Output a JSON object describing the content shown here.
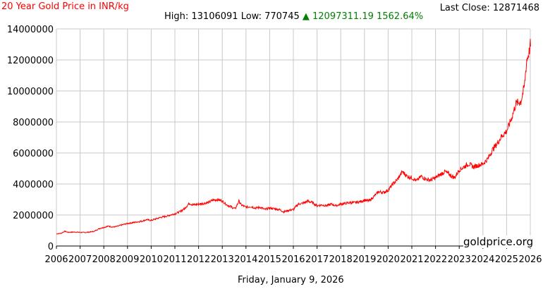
{
  "header": {
    "title": "20 Year Gold Price in INR/kg",
    "last_close_label": "Last Close: 12871468",
    "high_label": "High: 13106091",
    "low_label": "Low: 770745",
    "change_arrow": "▲",
    "change_text": "12097311.19 1562.64%"
  },
  "footer": {
    "date": "Friday, January 9, 2026",
    "watermark": "goldprice.org"
  },
  "colors": {
    "title": "#ff0000",
    "line": "#ff0000",
    "change": "#008000",
    "grid": "#c8c8c8",
    "axis": "#000000"
  },
  "chart_data": {
    "type": "line",
    "title": "20 Year Gold Price in INR/kg",
    "xlabel": "",
    "ylabel": "",
    "x_ticks": [
      "2006",
      "2007",
      "2008",
      "2009",
      "2010",
      "2011",
      "2012",
      "2013",
      "2014",
      "2015",
      "2016",
      "2017",
      "2018",
      "2019",
      "2020",
      "2021",
      "2022",
      "2023",
      "2024",
      "2025",
      "2026"
    ],
    "y_ticks": [
      "0",
      "2000000",
      "4000000",
      "6000000",
      "8000000",
      "10000000",
      "12000000",
      "14000000"
    ],
    "xlim": [
      2006,
      2026
    ],
    "ylim": [
      0,
      14000000
    ],
    "grid": true,
    "series": [
      {
        "values": [
          [
            2006.0,
            780000
          ],
          [
            2006.2,
            820000
          ],
          [
            2006.35,
            950000
          ],
          [
            2006.5,
            880000
          ],
          [
            2006.75,
            900000
          ],
          [
            2007.0,
            880000
          ],
          [
            2007.2,
            870000
          ],
          [
            2007.4,
            900000
          ],
          [
            2007.6,
            950000
          ],
          [
            2007.8,
            1120000
          ],
          [
            2008.0,
            1200000
          ],
          [
            2008.2,
            1280000
          ],
          [
            2008.4,
            1220000
          ],
          [
            2008.6,
            1280000
          ],
          [
            2008.8,
            1380000
          ],
          [
            2009.0,
            1450000
          ],
          [
            2009.2,
            1500000
          ],
          [
            2009.4,
            1550000
          ],
          [
            2009.6,
            1600000
          ],
          [
            2009.8,
            1700000
          ],
          [
            2010.0,
            1650000
          ],
          [
            2010.2,
            1750000
          ],
          [
            2010.4,
            1850000
          ],
          [
            2010.6,
            1900000
          ],
          [
            2010.8,
            2000000
          ],
          [
            2011.0,
            2080000
          ],
          [
            2011.2,
            2200000
          ],
          [
            2011.4,
            2400000
          ],
          [
            2011.6,
            2750000
          ],
          [
            2011.8,
            2650000
          ],
          [
            2012.0,
            2700000
          ],
          [
            2012.2,
            2750000
          ],
          [
            2012.4,
            2800000
          ],
          [
            2012.6,
            2950000
          ],
          [
            2012.8,
            3000000
          ],
          [
            2013.0,
            2900000
          ],
          [
            2013.2,
            2650000
          ],
          [
            2013.4,
            2500000
          ],
          [
            2013.55,
            2400000
          ],
          [
            2013.7,
            2900000
          ],
          [
            2013.8,
            2650000
          ],
          [
            2014.0,
            2500000
          ],
          [
            2014.2,
            2550000
          ],
          [
            2014.4,
            2450000
          ],
          [
            2014.6,
            2500000
          ],
          [
            2014.8,
            2350000
          ],
          [
            2015.0,
            2450000
          ],
          [
            2015.2,
            2400000
          ],
          [
            2015.4,
            2350000
          ],
          [
            2015.6,
            2200000
          ],
          [
            2015.8,
            2300000
          ],
          [
            2016.0,
            2350000
          ],
          [
            2016.2,
            2700000
          ],
          [
            2016.4,
            2750000
          ],
          [
            2016.6,
            2900000
          ],
          [
            2016.8,
            2800000
          ],
          [
            2017.0,
            2600000
          ],
          [
            2017.2,
            2650000
          ],
          [
            2017.4,
            2600000
          ],
          [
            2017.6,
            2700000
          ],
          [
            2017.8,
            2600000
          ],
          [
            2018.0,
            2700000
          ],
          [
            2018.2,
            2750000
          ],
          [
            2018.4,
            2800000
          ],
          [
            2018.6,
            2800000
          ],
          [
            2018.8,
            2850000
          ],
          [
            2019.0,
            2950000
          ],
          [
            2019.2,
            2900000
          ],
          [
            2019.4,
            3200000
          ],
          [
            2019.6,
            3500000
          ],
          [
            2019.8,
            3450000
          ],
          [
            2020.0,
            3600000
          ],
          [
            2020.2,
            4000000
          ],
          [
            2020.4,
            4300000
          ],
          [
            2020.6,
            4800000
          ],
          [
            2020.8,
            4500000
          ],
          [
            2021.0,
            4400000
          ],
          [
            2021.2,
            4200000
          ],
          [
            2021.4,
            4500000
          ],
          [
            2021.6,
            4300000
          ],
          [
            2021.8,
            4250000
          ],
          [
            2022.0,
            4400000
          ],
          [
            2022.2,
            4600000
          ],
          [
            2022.4,
            4800000
          ],
          [
            2022.6,
            4600000
          ],
          [
            2022.8,
            4400000
          ],
          [
            2023.0,
            4900000
          ],
          [
            2023.2,
            5100000
          ],
          [
            2023.4,
            5300000
          ],
          [
            2023.6,
            5100000
          ],
          [
            2023.8,
            5200000
          ],
          [
            2024.0,
            5300000
          ],
          [
            2024.2,
            5600000
          ],
          [
            2024.4,
            6200000
          ],
          [
            2024.6,
            6600000
          ],
          [
            2024.8,
            7100000
          ],
          [
            2025.0,
            7400000
          ],
          [
            2025.2,
            8200000
          ],
          [
            2025.4,
            9200000
          ],
          [
            2025.6,
            9300000
          ],
          [
            2025.75,
            10300000
          ],
          [
            2025.85,
            12000000
          ],
          [
            2025.95,
            12500000
          ],
          [
            2026.0,
            13000000
          ],
          [
            2026.02,
            12871468
          ]
        ]
      }
    ]
  }
}
